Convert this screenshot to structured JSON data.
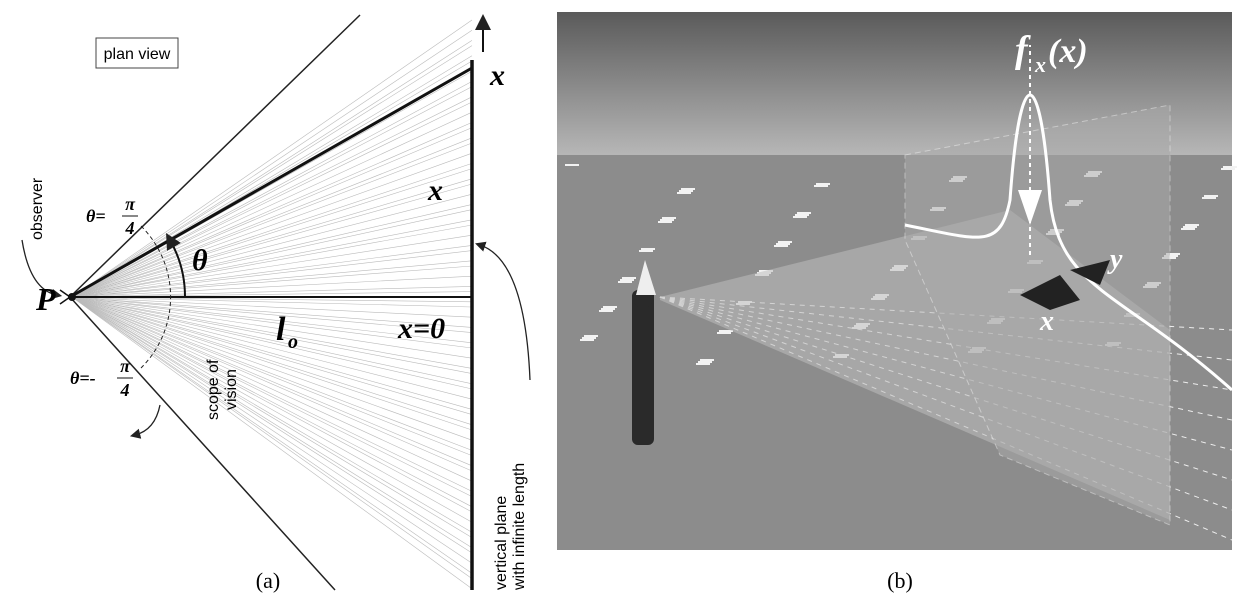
{
  "panel_a": {
    "box_label": "plan view",
    "x_top": "x",
    "x_mid": "x",
    "theta": "θ",
    "point": "P",
    "observer": "observer",
    "theta_pos": {
      "lhs": "θ=",
      "num": "π",
      "den": "4"
    },
    "theta_neg": {
      "lhs": "θ=-",
      "num": "π",
      "den": "4"
    },
    "scope": [
      "scope of",
      "vision"
    ],
    "distance": {
      "base": "l",
      "sub": "o"
    },
    "origin": "x=0",
    "plane": [
      "vertical plane",
      "with infinite length"
    ],
    "caption": "(a)"
  },
  "panel_b": {
    "function": {
      "base": "f",
      "sub": "x",
      "arg": "(x)"
    },
    "axis_y": "y",
    "axis_x": "x",
    "caption": "(b)"
  }
}
